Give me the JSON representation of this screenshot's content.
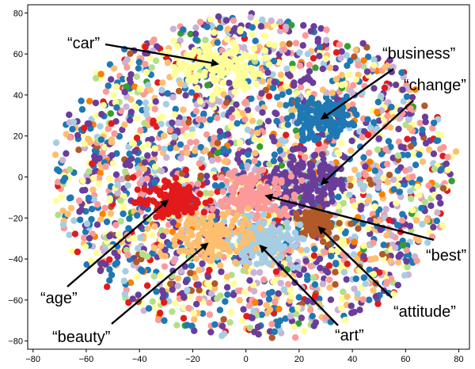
{
  "chart_data": {
    "type": "scatter",
    "title": "",
    "xlabel": "",
    "ylabel": "",
    "xlim": [
      -82,
      84
    ],
    "ylim": [
      -84,
      84
    ],
    "xticks": [
      -80,
      -60,
      -40,
      -20,
      0,
      20,
      40,
      60,
      80
    ],
    "yticks": [
      -80,
      -60,
      -40,
      -20,
      0,
      20,
      40,
      60,
      80
    ],
    "grid": false,
    "legend": "none",
    "point_cloud": {
      "description_center": [
        2,
        0
      ],
      "radius_x": 75,
      "radius_y": 78,
      "palette": [
        "#a6cee3",
        "#1f78b4",
        "#b2df8a",
        "#33a02c",
        "#fb9a99",
        "#e31a1c",
        "#fdbf6f",
        "#ff7f00",
        "#cab2d6",
        "#6a3d9a",
        "#ffff99",
        "#b15928"
      ],
      "palette_weights": [
        6,
        12,
        4,
        1,
        10,
        4,
        7,
        2,
        6,
        16,
        11,
        3
      ]
    },
    "clusters": [
      {
        "label": "“car”",
        "center": [
          -10,
          55
        ],
        "spread": [
          9,
          6
        ],
        "color": "#ffff99"
      },
      {
        "label": "“business”",
        "center": [
          28,
          28
        ],
        "spread": [
          6,
          5
        ],
        "color": "#1f78b4"
      },
      {
        "label": "“change”",
        "center": [
          23,
          -3
        ],
        "spread": [
          8,
          6
        ],
        "color": "#6a3d9a"
      },
      {
        "label": "“best”",
        "center": [
          3,
          -9
        ],
        "spread": [
          7,
          6
        ],
        "color": "#fb9a99"
      },
      {
        "label": "“attitude”",
        "center": [
          27,
          -22
        ],
        "spread": [
          3,
          3
        ],
        "color": "#b15928"
      },
      {
        "label": "“art”",
        "center": [
          5,
          -30
        ],
        "spread": [
          7,
          6
        ],
        "color": "#a6cee3"
      },
      {
        "label": "“beauty”",
        "center": [
          -14,
          -29
        ],
        "spread": [
          8,
          6
        ],
        "color": "#fdbf6f"
      },
      {
        "label": "“age”",
        "center": [
          -27,
          -11
        ],
        "spread": [
          5,
          4
        ],
        "color": "#e31a1c"
      }
    ],
    "annotations": [
      {
        "text": "“car”",
        "point": [
          -10,
          55
        ]
      },
      {
        "text": "“business”",
        "point": [
          28,
          28
        ]
      },
      {
        "text": "“change”",
        "point": [
          28,
          -4
        ]
      },
      {
        "text": "“best”",
        "point": [
          7,
          -9
        ]
      },
      {
        "text": "“attitude”",
        "point": [
          27,
          -24
        ]
      },
      {
        "text": "“art”",
        "point": [
          5,
          -33
        ]
      },
      {
        "text": "“beauty”",
        "point": [
          -14,
          -32
        ]
      },
      {
        "text": "“age”",
        "point": [
          -29,
          -11
        ]
      }
    ]
  }
}
